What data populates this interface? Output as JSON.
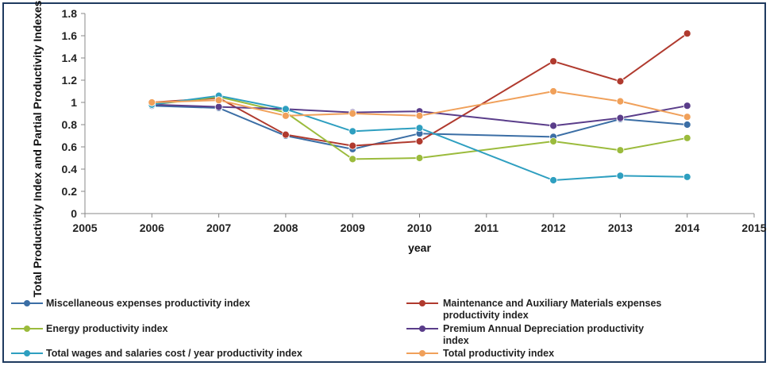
{
  "chart_data": {
    "type": "line",
    "xlabel": "year",
    "ylabel": "Total Productivity Index and Partial Productivity Indexes",
    "xlim": [
      2005,
      2015
    ],
    "ylim": [
      0,
      1.8
    ],
    "x_ticks": [
      "2005",
      "2006",
      "2007",
      "2008",
      "2009",
      "2010",
      "2011",
      "2012",
      "2013",
      "2014",
      "2015"
    ],
    "y_ticks": [
      "0",
      "0.2",
      "0.4",
      "0.6",
      "0.8",
      "1",
      "1.2",
      "1.4",
      "1.6",
      "1.8"
    ],
    "grid": false,
    "legend_position": "bottom",
    "series": [
      {
        "name": "Miscellaneous expenses productivity index",
        "color": "#3b6ea5",
        "x": [
          2006,
          2007,
          2008,
          2009,
          2010,
          2012,
          2013,
          2014
        ],
        "y": [
          0.97,
          0.95,
          0.7,
          0.58,
          0.72,
          0.69,
          0.85,
          0.8
        ]
      },
      {
        "name": "Maintenance and Auxiliary Materials expenses productivity index",
        "color": "#b03a2e",
        "x": [
          2006,
          2007,
          2008,
          2009,
          2010,
          2012,
          2013,
          2014
        ],
        "y": [
          1.0,
          1.04,
          0.71,
          0.61,
          0.65,
          1.37,
          1.19,
          1.62
        ]
      },
      {
        "name": "Energy productivity index",
        "color": "#9bbb3c",
        "x": [
          2006,
          2007,
          2008,
          2009,
          2010,
          2012,
          2013,
          2014
        ],
        "y": [
          0.98,
          1.05,
          0.91,
          0.49,
          0.5,
          0.65,
          0.57,
          0.68
        ]
      },
      {
        "name": "Premium Annual Depreciation productivity index",
        "color": "#5a3d8a",
        "x": [
          2006,
          2007,
          2008,
          2009,
          2010,
          2012,
          2013,
          2014
        ],
        "y": [
          0.98,
          0.96,
          0.94,
          0.91,
          0.92,
          0.79,
          0.86,
          0.97
        ]
      },
      {
        "name": "Total wages and salaries cost / year productivity index",
        "color": "#2e9fc0",
        "x": [
          2006,
          2007,
          2008,
          2009,
          2010,
          2012,
          2013,
          2014
        ],
        "y": [
          0.98,
          1.06,
          0.94,
          0.74,
          0.77,
          0.3,
          0.34,
          0.33
        ]
      },
      {
        "name": "Total productivity index",
        "color": "#f0a05a",
        "x": [
          2006,
          2007,
          2008,
          2009,
          2010,
          2012,
          2013,
          2014
        ],
        "y": [
          1.0,
          1.02,
          0.88,
          0.9,
          0.88,
          1.1,
          1.01,
          0.87
        ]
      }
    ],
    "legend": [
      {
        "text": "Miscellaneous expenses productivity index",
        "line2": ""
      },
      {
        "text": "Maintenance and Auxiliary Materials expenses",
        "line2": "productivity index"
      },
      {
        "text": "Energy productivity index",
        "line2": ""
      },
      {
        "text": "Premium Annual Depreciation productivity",
        "line2": "index"
      },
      {
        "text": "Total wages and salaries cost / year      productivity index",
        "line2": ""
      },
      {
        "text": "Total productivity index",
        "line2": ""
      }
    ]
  }
}
